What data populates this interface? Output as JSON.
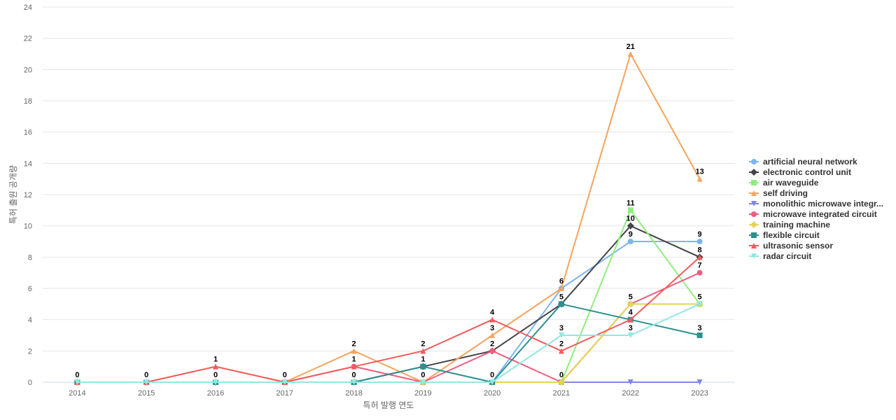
{
  "chart_data": {
    "type": "line",
    "title": "",
    "xlabel": "특허 발행 연도",
    "ylabel": "특허 출원 공개량",
    "x": [
      "2014",
      "2015",
      "2016",
      "2017",
      "2018",
      "2019",
      "2020",
      "2021",
      "2022",
      "2023"
    ],
    "ylim": [
      0,
      24
    ],
    "yticks": [
      0,
      2,
      4,
      6,
      8,
      10,
      12,
      14,
      16,
      18,
      20,
      22,
      24
    ],
    "grid": true,
    "legend_position": "right",
    "series": [
      {
        "name": "artificial neural network",
        "color": "#7cb5ec",
        "marker": "circle",
        "values": [
          0,
          0,
          0,
          0,
          0,
          0,
          0,
          6,
          9,
          9
        ],
        "labels": [
          null,
          null,
          null,
          null,
          null,
          null,
          null,
          null,
          9,
          9
        ]
      },
      {
        "name": "electronic control unit",
        "color": "#434348",
        "marker": "diamond",
        "values": [
          0,
          0,
          0,
          0,
          0,
          1,
          2,
          5,
          10,
          8
        ],
        "labels": [
          null,
          null,
          null,
          null,
          null,
          null,
          null,
          null,
          10,
          null
        ]
      },
      {
        "name": "air waveguide",
        "color": "#90ed7d",
        "marker": "square",
        "values": [
          0,
          0,
          0,
          0,
          0,
          0,
          0,
          0,
          11,
          5
        ],
        "labels": [
          null,
          null,
          null,
          null,
          null,
          null,
          null,
          null,
          11,
          null
        ]
      },
      {
        "name": "self driving",
        "color": "#f7a35c",
        "marker": "triangle",
        "values": [
          0,
          0,
          1,
          0,
          2,
          0,
          3,
          6,
          21,
          13
        ],
        "labels": [
          null,
          null,
          1,
          null,
          2,
          null,
          3,
          6,
          21,
          13
        ]
      },
      {
        "name": "monolithic microwave integr...",
        "color": "#8085e9",
        "marker": "triangle-down",
        "values": [
          0,
          0,
          0,
          0,
          0,
          0,
          0,
          0,
          0,
          0
        ],
        "labels": [
          null,
          null,
          null,
          null,
          null,
          null,
          null,
          null,
          null,
          null
        ]
      },
      {
        "name": "microwave integrated circuit",
        "color": "#f15c80",
        "marker": "circle",
        "values": [
          0,
          0,
          0,
          0,
          1,
          0,
          2,
          0,
          5,
          7
        ],
        "labels": [
          null,
          null,
          null,
          null,
          null,
          0,
          2,
          null,
          5,
          7
        ]
      },
      {
        "name": "training machine",
        "color": "#e4d354",
        "marker": "diamond",
        "values": [
          0,
          0,
          0,
          0,
          0,
          0,
          0,
          0,
          5,
          5
        ],
        "labels": [
          null,
          null,
          null,
          null,
          null,
          null,
          null,
          0,
          null,
          5
        ]
      },
      {
        "name": "flexible circuit",
        "color": "#2b908f",
        "marker": "square",
        "values": [
          0,
          0,
          0,
          0,
          0,
          1,
          0,
          5,
          4,
          3
        ],
        "labels": [
          0,
          0,
          0,
          0,
          0,
          1,
          0,
          5,
          4,
          3
        ]
      },
      {
        "name": "ultrasonic sensor",
        "color": "#f45b5b",
        "marker": "triangle",
        "values": [
          0,
          0,
          1,
          0,
          1,
          2,
          4,
          2,
          4,
          8
        ],
        "labels": [
          null,
          null,
          null,
          null,
          1,
          2,
          4,
          2,
          null,
          8
        ]
      },
      {
        "name": "radar circuit",
        "color": "#91e8e1",
        "marker": "triangle-down",
        "values": [
          0,
          0,
          0,
          0,
          0,
          0,
          0,
          3,
          3,
          5
        ],
        "labels": [
          null,
          null,
          null,
          null,
          null,
          null,
          null,
          3,
          3,
          null
        ]
      }
    ]
  }
}
